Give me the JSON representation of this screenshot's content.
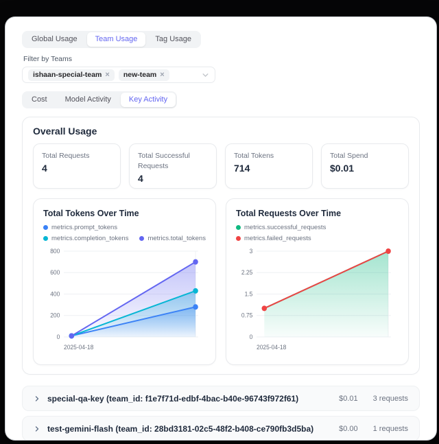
{
  "top_tabs": {
    "items": [
      {
        "label": "Global Usage",
        "active": false
      },
      {
        "label": "Team Usage",
        "active": true
      },
      {
        "label": "Tag Usage",
        "active": false
      }
    ]
  },
  "filter": {
    "label": "Filter by Teams",
    "chips": [
      {
        "label": "ishaan-special-team"
      },
      {
        "label": "new-team"
      }
    ]
  },
  "sub_tabs": {
    "items": [
      {
        "label": "Cost",
        "active": false
      },
      {
        "label": "Model Activity",
        "active": false
      },
      {
        "label": "Key Activity",
        "active": true
      }
    ]
  },
  "overall": {
    "title": "Overall Usage",
    "metrics": [
      {
        "label": "Total Requests",
        "value": "4"
      },
      {
        "label": "Total Successful Requests",
        "value": "4"
      },
      {
        "label": "Total Tokens",
        "value": "714"
      },
      {
        "label": "Total Spend",
        "value": "$0.01"
      }
    ]
  },
  "chart_data": [
    {
      "type": "area",
      "title": "Total Tokens Over Time",
      "x_tick_labels": [
        "2025-04-18"
      ],
      "series": [
        {
          "name": "metrics.prompt_tokens",
          "color": "#3b82f6",
          "values": [
            10,
            280
          ]
        },
        {
          "name": "metrics.completion_tokens",
          "color": "#06b6d4",
          "values": [
            10,
            430
          ]
        },
        {
          "name": "metrics.total_tokens",
          "color": "#6366f1",
          "values": [
            10,
            700
          ]
        }
      ],
      "ylim": [
        0,
        800
      ],
      "yticks": [
        0,
        200,
        400,
        600,
        800
      ],
      "grid": true,
      "legend_position": "top"
    },
    {
      "type": "area",
      "title": "Total Requests Over Time",
      "x_tick_labels": [
        "2025-04-18"
      ],
      "series": [
        {
          "name": "metrics.successful_requests",
          "color": "#10b981",
          "values": [
            1,
            3
          ],
          "dots": false
        },
        {
          "name": "metrics.failed_requests",
          "color": "#ef4444",
          "values": [
            1,
            3
          ],
          "area": false
        }
      ],
      "ylim": [
        0,
        3
      ],
      "yticks": [
        0,
        0.75,
        1.5,
        2.25,
        3
      ],
      "grid": true,
      "legend_position": "top"
    }
  ],
  "rows": [
    {
      "label": "special-qa-key (team_id: f1e7f71d-edbf-4bac-b40e-96743f972f61)",
      "spend": "$0.01",
      "requests": "3 requests"
    },
    {
      "label": "test-gemini-flash (team_id: 28bd3181-02c5-48f2-b408-ce790fb3d5ba)",
      "spend": "$0.00",
      "requests": "1 requests"
    }
  ],
  "icons": {
    "chip_close": "×"
  },
  "colors": {
    "accent": "#6366f1",
    "grid_line": "#eef0f3",
    "tick_text": "#6b7280"
  }
}
